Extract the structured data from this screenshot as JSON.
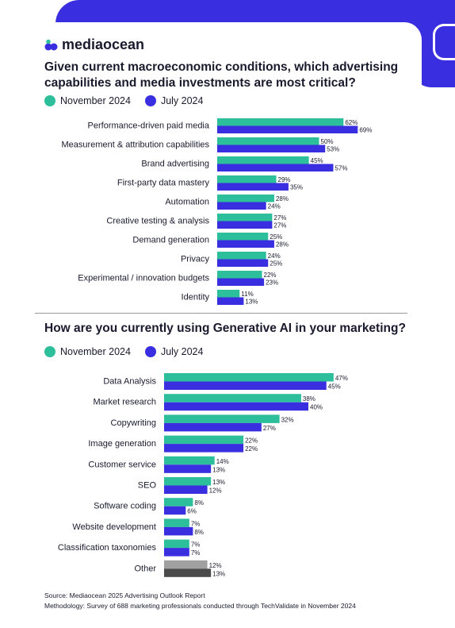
{
  "brand": {
    "name": "mediaocean"
  },
  "legend": {
    "nov": "November 2024",
    "jul": "July 2024"
  },
  "colors": {
    "nov": "#2dbf9c",
    "jul": "#3a2fe0",
    "other_nov": "#a0a0a0",
    "other_jul": "#4a4a4a",
    "accent_bg": "#3a2fe0"
  },
  "chart_data": [
    {
      "type": "bar",
      "orientation": "horizontal",
      "title": "Given current macroeconomic conditions, which advertising capabilities and media investments are most critical?",
      "categories": [
        "Performance-driven paid media",
        "Measurement & attribution capabilities",
        "Brand advertising",
        "First-party data mastery",
        "Automation",
        "Creative testing & analysis",
        "Demand generation",
        "Privacy",
        "Experimental / innovation budgets",
        "Identity"
      ],
      "series": [
        {
          "name": "November 2024",
          "values": [
            62,
            50,
            45,
            29,
            28,
            27,
            25,
            24,
            22,
            11
          ]
        },
        {
          "name": "July 2024",
          "values": [
            69,
            53,
            57,
            35,
            24,
            27,
            28,
            25,
            23,
            13
          ]
        }
      ],
      "unit": "%",
      "legend_position": "top-left"
    },
    {
      "type": "bar",
      "orientation": "horizontal",
      "title": "How are you currently using Generative AI in your marketing?",
      "categories": [
        "Data Analysis",
        "Market research",
        "Copywriting",
        "Image generation",
        "Customer service",
        "SEO",
        "Software coding",
        "Website development",
        "Classification taxonomies",
        "Other"
      ],
      "series": [
        {
          "name": "November 2024",
          "values": [
            47,
            38,
            32,
            22,
            14,
            13,
            8,
            7,
            7,
            12
          ]
        },
        {
          "name": "July 2024",
          "values": [
            45,
            40,
            27,
            22,
            13,
            12,
            6,
            8,
            7,
            13
          ]
        }
      ],
      "unit": "%",
      "legend_position": "top-left"
    }
  ],
  "footer": {
    "source": "Source: Mediaocean 2025 Advertising Outlook Report",
    "methodology": "Methodology: Survey of 688 marketing professionals conducted through TechValidate in November 2024"
  }
}
